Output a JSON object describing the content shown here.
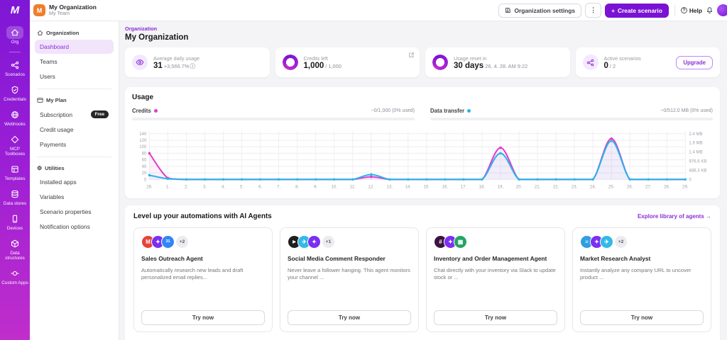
{
  "colors": {
    "accent": "#7a12d4",
    "accent_light": "#f3e8fd",
    "credits_line": "#e23cc8",
    "data_line": "#2bb3ea",
    "org_avatar_bg": "#ee7e2d"
  },
  "icons": {
    "kebab": "⋮",
    "plus": "+",
    "gear": "⚙",
    "help_glyph": "?"
  },
  "topbar": {
    "org_settings": "Organization settings",
    "create_scenario": "Create scenario",
    "help": "Help"
  },
  "org_switcher": {
    "avatar_letter": "M",
    "org_name": "My Organization",
    "team_name": "My Team"
  },
  "sidebar": {
    "logo": "M",
    "items": [
      {
        "label": "Org"
      },
      {
        "label": "Scenarios"
      },
      {
        "label": "Credentials"
      },
      {
        "label": "Webhooks"
      },
      {
        "label": "MCP Toolboxes"
      },
      {
        "label": "Templates"
      },
      {
        "label": "Data stores"
      },
      {
        "label": "Devices"
      },
      {
        "label": "Data structures"
      },
      {
        "label": "Custom Apps"
      }
    ]
  },
  "subnav": {
    "sections": [
      {
        "header": "Organization",
        "items": [
          {
            "label": "Dashboard"
          },
          {
            "label": "Teams"
          },
          {
            "label": "Users"
          }
        ]
      },
      {
        "header": "My Plan",
        "items": [
          {
            "label": "Subscription",
            "badge": "Free"
          },
          {
            "label": "Credit usage"
          },
          {
            "label": "Payments"
          }
        ]
      },
      {
        "header": "Utilities",
        "items": [
          {
            "label": "Installed apps"
          },
          {
            "label": "Variables"
          },
          {
            "label": "Scenario properties"
          },
          {
            "label": "Notification options"
          }
        ]
      }
    ]
  },
  "page": {
    "breadcrumb": "Organization",
    "title": "My Organization"
  },
  "stats": [
    {
      "label": "Average daily usage",
      "value": "31",
      "suffix": "+3,566.7%",
      "info_icon": "ⓘ"
    },
    {
      "label": "Credits left",
      "value": "1,000",
      "suffix": "/ 1,000"
    },
    {
      "label": "Usage reset in",
      "value": "30 days",
      "suffix": "26. 4. 28. AM 9:22"
    },
    {
      "label": "Active scenarios",
      "value": "0",
      "suffix": "/ 2",
      "action": "Upgrade"
    }
  ],
  "usage": {
    "title": "Usage",
    "meters": [
      {
        "label": "Credits",
        "value_text": "~0/1,000 (0% used)",
        "percent": 0,
        "color": "#e23cc8"
      },
      {
        "label": "Data transfer",
        "value_text": "~0/512.0 MB (0% used)",
        "percent": 0,
        "color": "#2bb3ea"
      }
    ]
  },
  "chart_data": {
    "type": "line",
    "title": "Usage",
    "x_labels": [
      "28.",
      "1.",
      "2.",
      "3.",
      "4.",
      "5.",
      "6.",
      "7.",
      "8.",
      "9.",
      "10.",
      "11.",
      "12.",
      "13.",
      "14.",
      "15.",
      "16.",
      "17.",
      "18.",
      "19.",
      "20.",
      "21.",
      "22.",
      "23.",
      "24.",
      "25.",
      "26.",
      "27.",
      "28.",
      "29."
    ],
    "left_axis": {
      "ticks": [
        0,
        20,
        40,
        60,
        80,
        100,
        120,
        140
      ],
      "scale_max": 150,
      "label": "credits"
    },
    "right_axis": {
      "tick_labels": [
        "0",
        "488.3 KB",
        "976.6 KB",
        "1.4 MB",
        "1.9 MB",
        "2.4 MB"
      ],
      "left_positions": [
        0,
        28,
        56,
        84,
        112,
        140
      ],
      "label": "data transfer"
    },
    "grid": true,
    "legend_position": "none",
    "series": [
      {
        "name": "Credits",
        "color": "#e23cc8",
        "fill": "rgba(226,60,200,0.07)",
        "values": [
          80,
          4,
          0,
          0,
          0,
          0,
          0,
          0,
          0,
          0,
          0,
          0,
          8,
          0,
          0,
          0,
          0,
          0,
          0,
          97,
          0,
          0,
          0,
          0,
          0,
          125,
          0,
          0,
          0,
          0
        ]
      },
      {
        "name": "Data transfer",
        "color": "#2bb3ea",
        "fill": "rgba(43,179,234,0.06)",
        "values": [
          13,
          2,
          0,
          0,
          0,
          0,
          0,
          0,
          0,
          0,
          0,
          0,
          15,
          0,
          0,
          0,
          0,
          0,
          0,
          80,
          0,
          0,
          0,
          0,
          0,
          118,
          0,
          0,
          0,
          0
        ]
      }
    ]
  },
  "agents": {
    "heading": "Level up your automations with AI Agents",
    "link": "Explore library of agents →",
    "try_label": "Try now",
    "cards": [
      {
        "title": "Sales Outreach Agent",
        "description": "Automatically research new leads and draft personalized email replies...",
        "icons": [
          {
            "name": "gmail",
            "bg": "#e5433a",
            "glyph": "M"
          },
          {
            "name": "make-ai",
            "bg": "#7b2ff2",
            "glyph": "✦"
          },
          {
            "name": "google-calendar",
            "bg": "#3086f6",
            "glyph": "31"
          }
        ],
        "extra": "+2"
      },
      {
        "title": "Social Media Comment Responder",
        "description": "Never leave a follower hanging. This agent monitors your channel ...",
        "icons": [
          {
            "name": "youtube",
            "bg": "#1f1f1f",
            "glyph": "▶"
          },
          {
            "name": "telegram",
            "bg": "#33b8e8",
            "glyph": "✈"
          },
          {
            "name": "make-ai",
            "bg": "#7b2ff2",
            "glyph": "✦"
          }
        ],
        "extra": "+1"
      },
      {
        "title": "Inventory and Order Management Agent",
        "description": "Chat directly with your inventory via Slack to update stock or ...",
        "icons": [
          {
            "name": "slack",
            "bg": "#3b1440",
            "glyph": "#"
          },
          {
            "name": "make-ai",
            "bg": "#7b2ff2",
            "glyph": "✦"
          },
          {
            "name": "google-sheets",
            "bg": "#23a566",
            "glyph": "▦"
          }
        ],
        "extra": ""
      },
      {
        "title": "Market Research Analyst",
        "description": "Instantly analyze any company URL to uncover product ...",
        "icons": [
          {
            "name": "list-tool",
            "bg": "#2f9fe0",
            "glyph": "≡"
          },
          {
            "name": "make-ai",
            "bg": "#7b2ff2",
            "glyph": "✦"
          },
          {
            "name": "telegram",
            "bg": "#33b8e8",
            "glyph": "✈"
          }
        ],
        "extra": "+2"
      }
    ]
  }
}
